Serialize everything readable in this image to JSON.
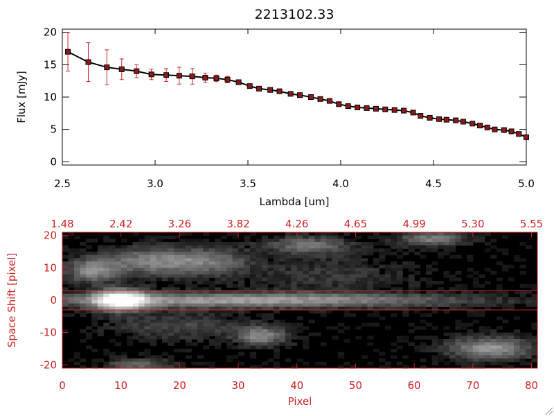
{
  "colors": {
    "black": "#000000",
    "accent_red": "#cc2222",
    "errorbar": "#cc2222",
    "marker_fill": "#8b1a1a"
  },
  "chart_data": [
    {
      "type": "line",
      "title": "2213102.33",
      "xlabel": "Lambda [um]",
      "ylabel": "Flux [mJy]",
      "xlim": [
        2.5,
        5.0
      ],
      "ylim": [
        -0.5,
        20.5
      ],
      "xticks": [
        "2.5",
        "3.0",
        "3.5",
        "4.0",
        "4.5",
        "5.0"
      ],
      "xtick_values": [
        2.5,
        3.0,
        3.5,
        4.0,
        4.5,
        5.0
      ],
      "yticks": [
        "0",
        "5",
        "10",
        "15",
        "20"
      ],
      "ytick_values": [
        0,
        5,
        10,
        15,
        20
      ],
      "grid": false,
      "series": [
        {
          "x": [
            2.53,
            2.64,
            2.74,
            2.82,
            2.9,
            2.98,
            3.06,
            3.13,
            3.2,
            3.27,
            3.33,
            3.39,
            3.45,
            3.51,
            3.56,
            3.62,
            3.67,
            3.73,
            3.78,
            3.84,
            3.89,
            3.94,
            3.99,
            4.04,
            4.09,
            4.14,
            4.19,
            4.24,
            4.29,
            4.34,
            4.39,
            4.43,
            4.48,
            4.53,
            4.57,
            4.62,
            4.66,
            4.71,
            4.75,
            4.79,
            4.83,
            4.88,
            4.92,
            4.96,
            5.0
          ],
          "y": [
            17.0,
            15.4,
            14.6,
            14.3,
            14.0,
            13.5,
            13.4,
            13.3,
            13.2,
            13.0,
            12.9,
            12.7,
            12.3,
            11.7,
            11.3,
            11.1,
            10.9,
            10.5,
            10.3,
            10.0,
            9.7,
            9.4,
            8.9,
            8.6,
            8.4,
            8.3,
            8.2,
            8.1,
            8.0,
            7.9,
            7.6,
            7.1,
            6.8,
            6.6,
            6.5,
            6.4,
            6.2,
            5.9,
            5.6,
            5.3,
            5.0,
            4.9,
            4.7,
            4.3,
            3.8
          ],
          "yerr": [
            3.0,
            3.0,
            2.7,
            1.6,
            1.0,
            0.8,
            1.0,
            1.3,
            1.2,
            0.7,
            0.5,
            0.5,
            0.3,
            0.3,
            0.3,
            0.3,
            0.3,
            0.3,
            0.3,
            0.3,
            0.3,
            0.3,
            0.3,
            0.3,
            0.3,
            0.3,
            0.3,
            0.3,
            0.3,
            0.3,
            0.3,
            0.3,
            0.3,
            0.3,
            0.3,
            0.3,
            0.3,
            0.3,
            0.3,
            0.3,
            0.3,
            0.3,
            0.3,
            0.3,
            0.3
          ]
        }
      ]
    },
    {
      "type": "heatmap",
      "xlabel": "Pixel",
      "ylabel": "Space Shift [pixel]",
      "xlim": [
        0,
        81
      ],
      "ylim": [
        -21,
        21
      ],
      "xticks": [
        "0",
        "10",
        "20",
        "30",
        "40",
        "50",
        "60",
        "70",
        "80"
      ],
      "xtick_values": [
        0,
        10,
        20,
        30,
        40,
        50,
        60,
        70,
        80
      ],
      "yticks": [
        "20",
        "10",
        "0",
        "-10",
        "-20"
      ],
      "ytick_values": [
        20,
        10,
        0,
        -10,
        -20
      ],
      "top_axis_ticks": [
        "1.48",
        "2.42",
        "3.26",
        "3.82",
        "4.26",
        "4.65",
        "4.99",
        "5.30",
        "5.55"
      ],
      "extraction_band": [
        -3,
        3
      ],
      "blobs": [
        {
          "x": 10,
          "y": 0,
          "sx": 3,
          "sy": 2.2,
          "amp": 1.0
        },
        {
          "x": 30,
          "y": 0,
          "sx": 26,
          "sy": 1.6,
          "amp": 0.55
        },
        {
          "x": 5,
          "y": 9,
          "sx": 3,
          "sy": 2.5,
          "amp": 0.45
        },
        {
          "x": 15,
          "y": 12,
          "sx": 6,
          "sy": 3,
          "amp": 0.4
        },
        {
          "x": 25,
          "y": 12,
          "sx": 5,
          "sy": 3,
          "amp": 0.3
        },
        {
          "x": 42,
          "y": 17,
          "sx": 5,
          "sy": 2,
          "amp": 0.35
        },
        {
          "x": 63,
          "y": 19,
          "sx": 4,
          "sy": 1.6,
          "amp": 0.4
        },
        {
          "x": 34,
          "y": -11,
          "sx": 3,
          "sy": 2,
          "amp": 0.45
        },
        {
          "x": 73,
          "y": -15,
          "sx": 5,
          "sy": 2.5,
          "amp": 0.5
        },
        {
          "x": 13,
          "y": -20,
          "sx": 4,
          "sy": 1.5,
          "amp": 0.3
        },
        {
          "x": 45,
          "y": 8,
          "sx": 10,
          "sy": 4,
          "amp": 0.15
        },
        {
          "x": 20,
          "y": -8,
          "sx": 8,
          "sy": 3,
          "amp": 0.2
        }
      ]
    }
  ]
}
